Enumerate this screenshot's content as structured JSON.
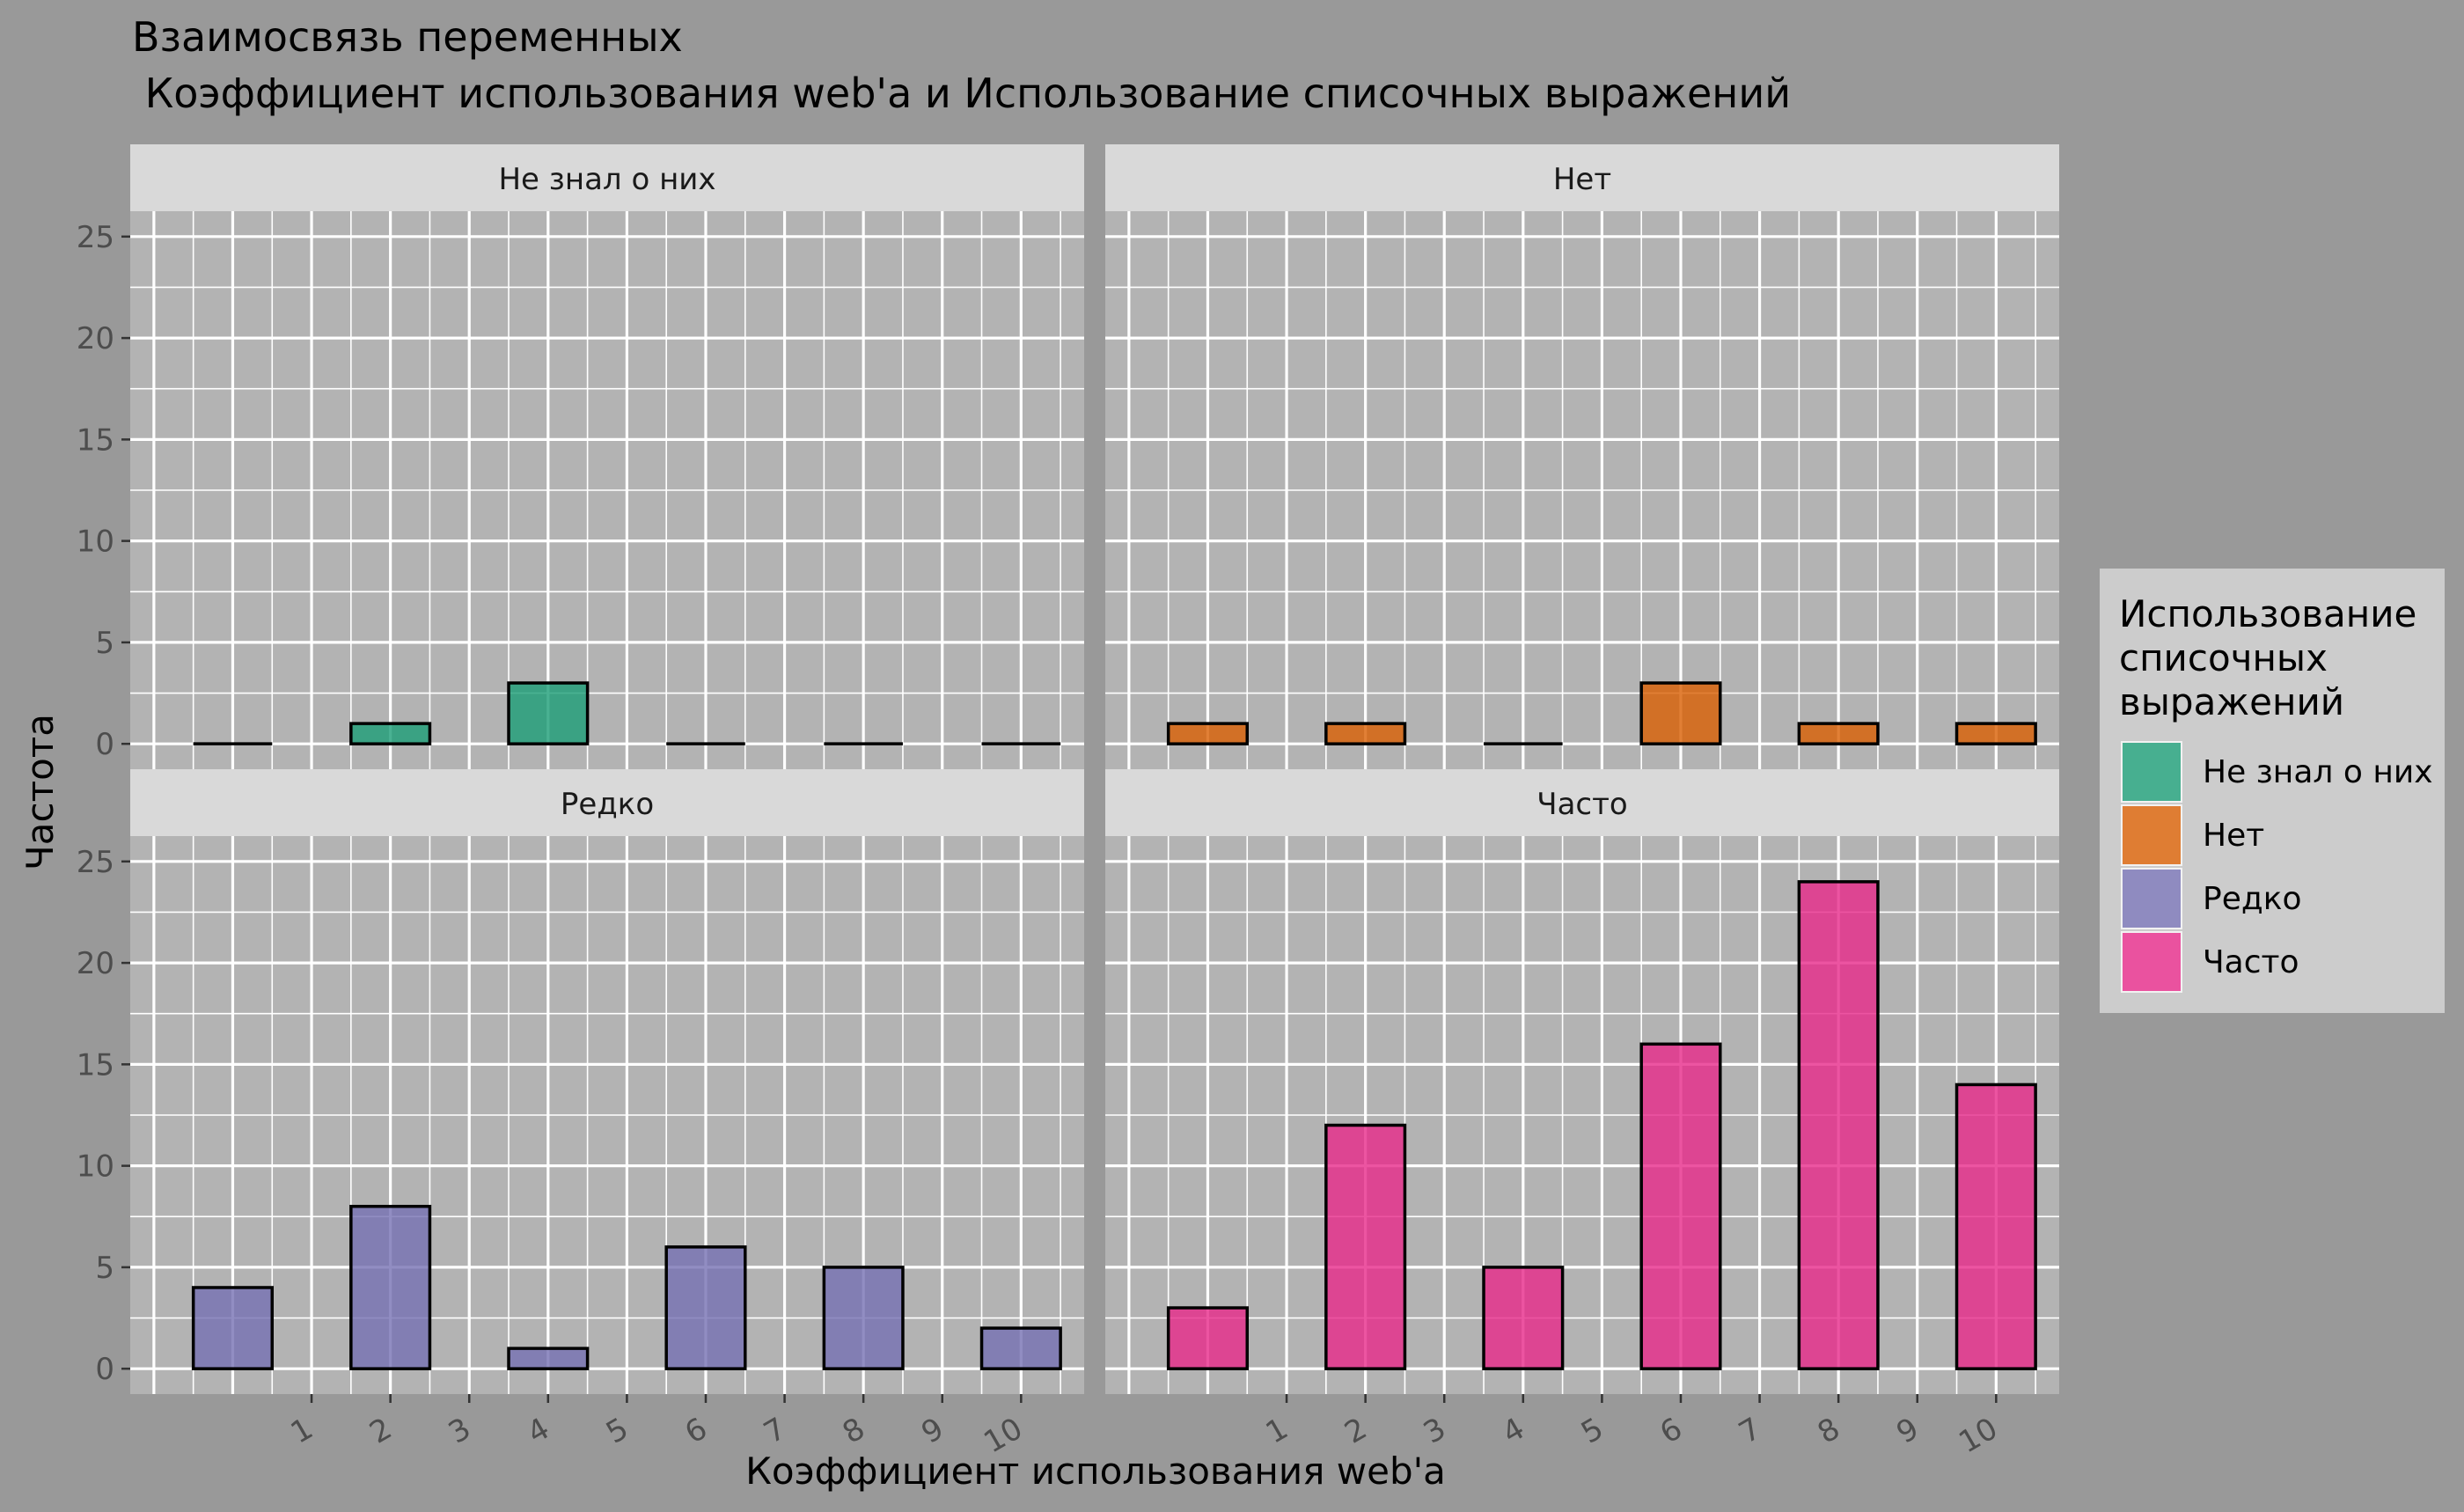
{
  "chart_data": {
    "type": "bar",
    "title_line1": "Взаимосвязь переменных",
    "title_line2": " Коэффициент использования web'a и Использование списочных выражений",
    "xlabel": "Коэффициент использования web'a",
    "ylabel": "Частота",
    "ylim": [
      0,
      25
    ],
    "y_ticks": [
      "0",
      "5",
      "10",
      "15",
      "20",
      "25"
    ],
    "x_ticks": [
      "1",
      "2",
      "3",
      "4",
      "5",
      "6",
      "7",
      "8",
      "9",
      "10"
    ],
    "categories": [
      "",
      "2",
      "4",
      "6",
      "8",
      "10"
    ],
    "legend": {
      "title_lines": [
        "Использование",
        "списочных",
        "выражений"
      ],
      "position": "right"
    },
    "series": [
      {
        "name": "Не знал о них",
        "color": "#1b9e77",
        "values": [
          0,
          1,
          3,
          0,
          0,
          0
        ]
      },
      {
        "name": "Нет",
        "color": "#d95f02",
        "values": [
          1,
          1,
          0,
          3,
          1,
          1
        ]
      },
      {
        "name": "Редко",
        "color": "#7570b3",
        "values": [
          4,
          8,
          1,
          6,
          5,
          2
        ]
      },
      {
        "name": "Часто",
        "color": "#e7298a",
        "values": [
          3,
          12,
          5,
          16,
          24,
          14
        ]
      }
    ],
    "grid": true
  }
}
